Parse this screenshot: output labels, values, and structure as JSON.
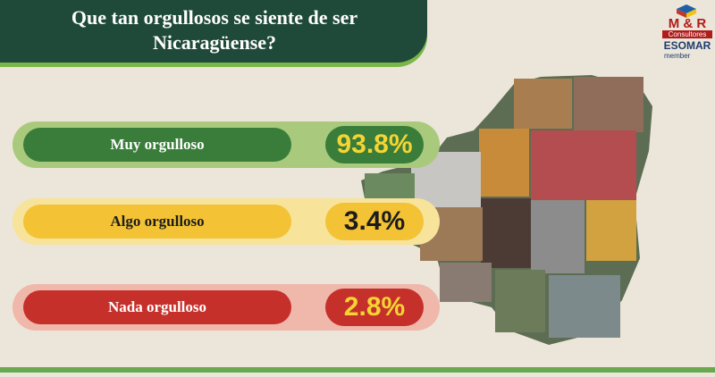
{
  "title": "Que tan orgullosos se siente de ser Nicaragüense?",
  "logo": {
    "brand": "M & R",
    "sub": "Consultores",
    "association": "ESOMAR",
    "member": "member"
  },
  "chart_data": {
    "type": "bar",
    "title": "Que tan orgullosos se siente de ser Nicaragüense?",
    "categories": [
      "Muy orgulloso",
      "Algo orgulloso",
      "Nada orgulloso"
    ],
    "values": [
      93.8,
      3.4,
      2.8
    ],
    "value_labels": [
      "93.8%",
      "3.4%",
      "2.8%"
    ],
    "colors": [
      "#3a7d3a",
      "#f3c335",
      "#c5302b"
    ]
  }
}
